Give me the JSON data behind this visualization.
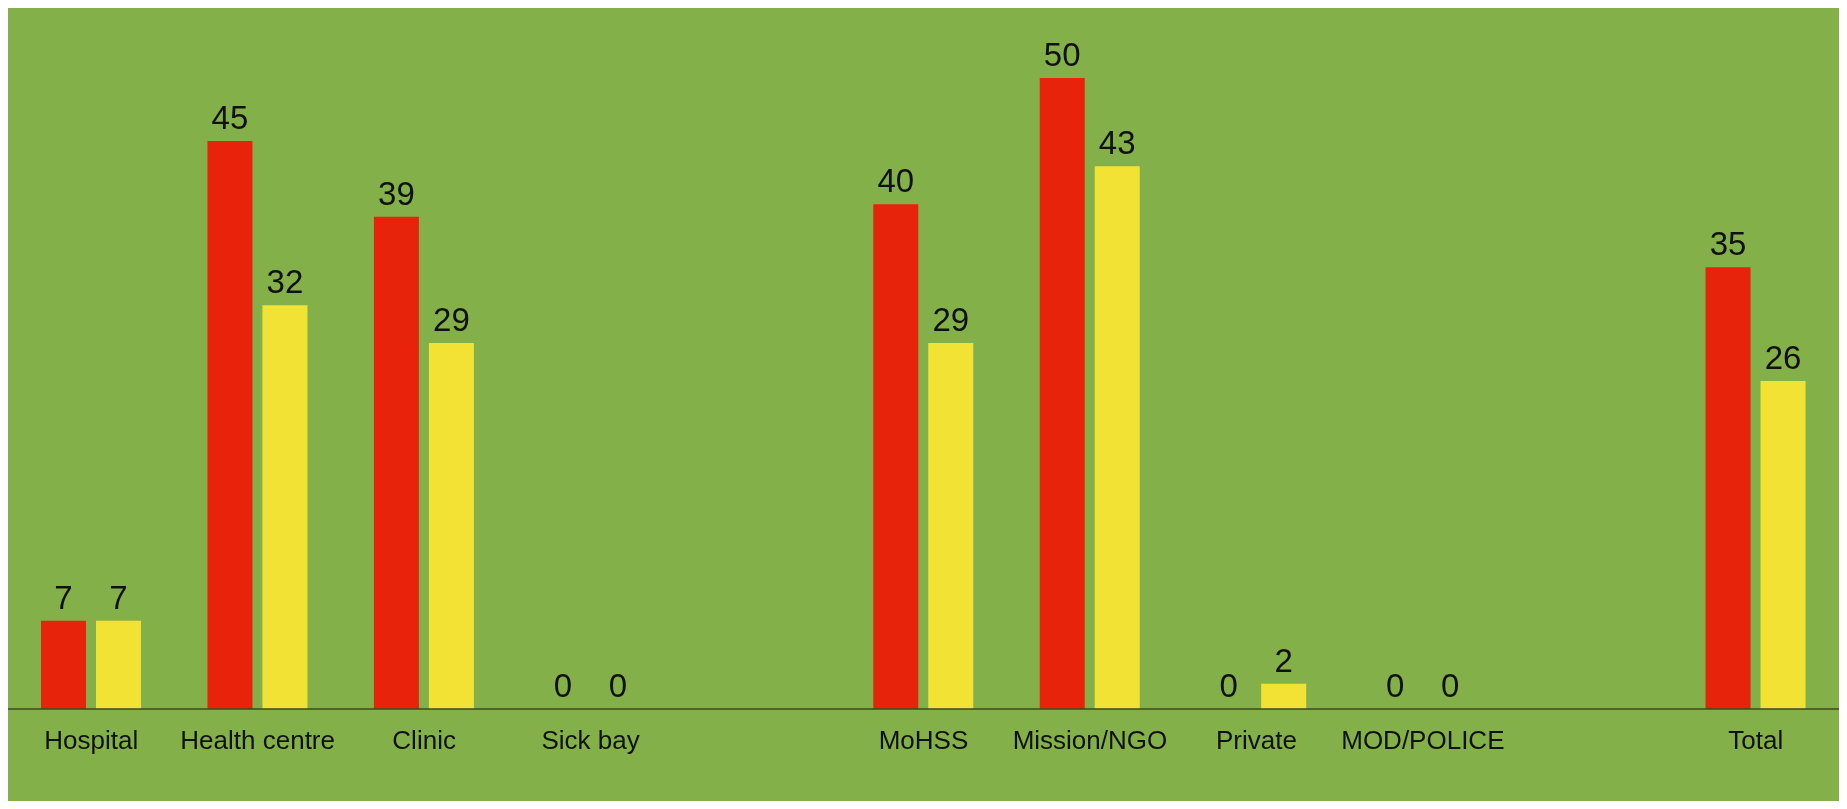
{
  "chart_data": {
    "type": "bar",
    "categories": [
      "Hospital",
      "Health centre",
      "Clinic",
      "Sick bay",
      null,
      "MoHSS",
      "Mission/NGO",
      "Private",
      "MOD/POLICE",
      null,
      "Total"
    ],
    "series": [
      {
        "color": "#e8230c",
        "values": [
          7,
          45,
          39,
          0,
          null,
          40,
          50,
          0,
          0,
          null,
          35
        ]
      },
      {
        "color": "#f2e234",
        "values": [
          7,
          32,
          29,
          0,
          null,
          29,
          43,
          2,
          0,
          null,
          26
        ]
      }
    ],
    "data_labels": true,
    "grid": false,
    "legend": false
  }
}
